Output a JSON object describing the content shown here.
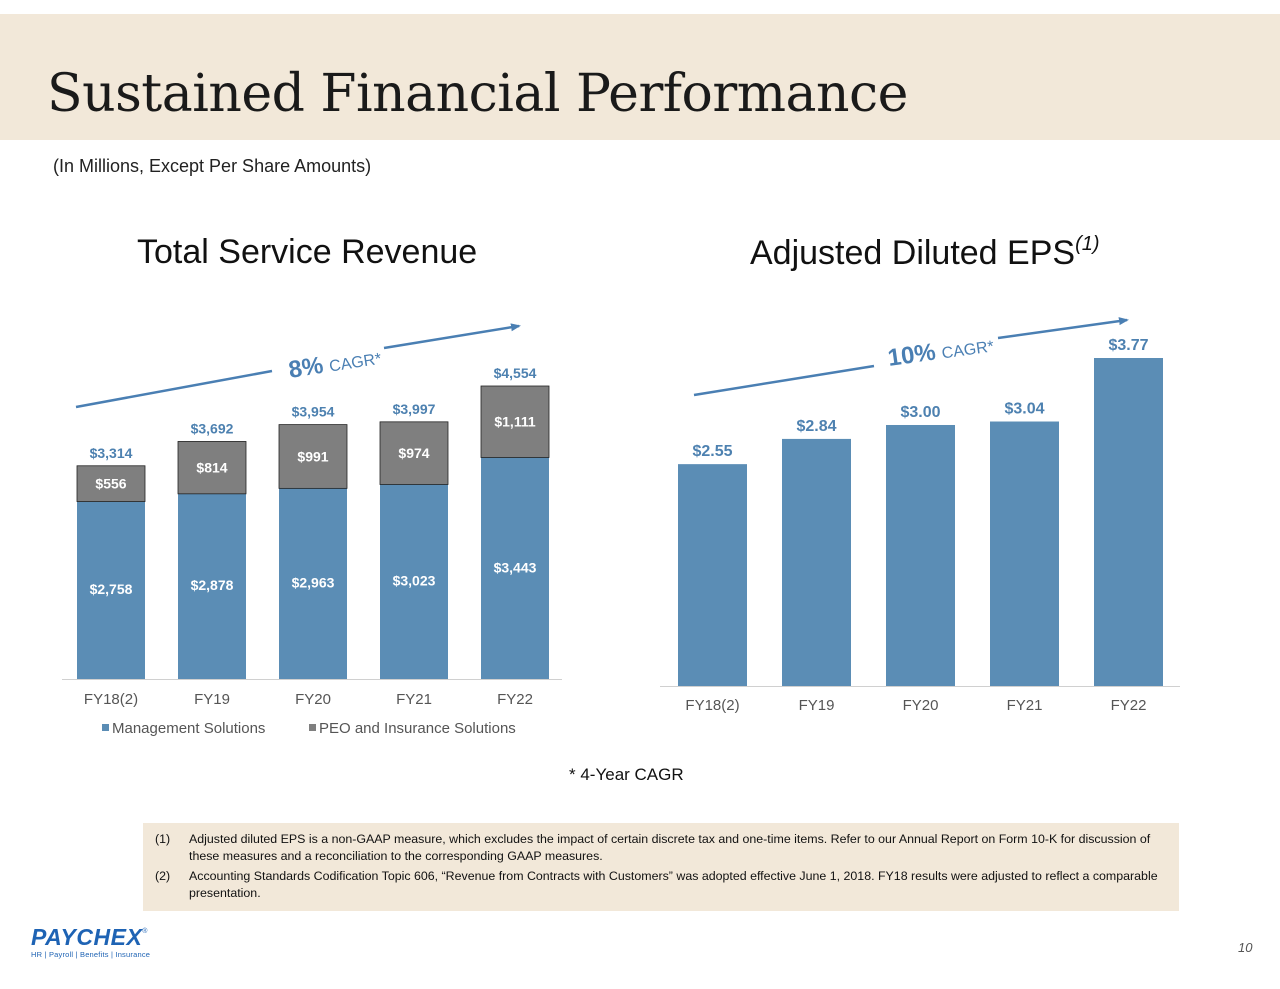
{
  "header": {
    "title": "Sustained Financial Performance",
    "subtitle": "(In Millions, Except Per Share Amounts)"
  },
  "colors": {
    "header_band": "#f2e8d9",
    "management": "#5b8db5",
    "peo": "#7f7f7f",
    "label_blue": "#4d81b0",
    "cagr_blue": "#4a7fb3"
  },
  "revenue_chart": {
    "title": "Total Service Revenue",
    "cagr_value": "8%",
    "cagr_label": "CAGR*"
  },
  "eps_chart": {
    "title": "Adjusted Diluted EPS",
    "title_sup": "(1)",
    "cagr_value": "10%",
    "cagr_label": "CAGR*"
  },
  "chart_data": [
    {
      "type": "bar",
      "stacked": true,
      "title": "Total Service Revenue",
      "categories": [
        "FY18(2)",
        "FY19",
        "FY20",
        "FY21",
        "FY22"
      ],
      "series": [
        {
          "name": "Management Solutions",
          "values": [
            2758,
            2878,
            2963,
            3023,
            3443
          ],
          "labels": [
            "$2,758",
            "$2,878",
            "$2,963",
            "$3,023",
            "$3,443"
          ]
        },
        {
          "name": "PEO and Insurance Solutions",
          "values": [
            556,
            814,
            991,
            974,
            1111
          ],
          "labels": [
            "$556",
            "$814",
            "$991",
            "$974",
            "$1,111"
          ]
        }
      ],
      "totals": [
        3314,
        3692,
        3954,
        3997,
        4554
      ],
      "total_labels": [
        "$3,314",
        "$3,692",
        "$3,954",
        "$3,997",
        "$4,554"
      ],
      "ylim": [
        0,
        5000
      ],
      "legend": "bottom",
      "grid": false
    },
    {
      "type": "bar",
      "title": "Adjusted Diluted EPS",
      "categories": [
        "FY18(2)",
        "FY19",
        "FY20",
        "FY21",
        "FY22"
      ],
      "values": [
        2.55,
        2.84,
        3.0,
        3.04,
        3.77
      ],
      "labels": [
        "$2.55",
        "$2.84",
        "$3.00",
        "$3.04",
        "$3.77"
      ],
      "ylim": [
        0,
        4.0
      ],
      "grid": false
    }
  ],
  "cagr_note": "* 4-Year CAGR",
  "footnotes": [
    {
      "num": "(1)",
      "text": "Adjusted diluted EPS is a non-GAAP measure, which excludes the impact of certain discrete tax and one-time items. Refer to our Annual Report on Form 10-K for discussion of these measures and a reconciliation to the corresponding GAAP measures."
    },
    {
      "num": "(2)",
      "text": "Accounting Standards Codification Topic 606, “Revenue from Contracts with Customers” was adopted effective June 1, 2018.  FY18 results were adjusted to reflect a comparable presentation."
    }
  ],
  "logo": {
    "name": "PAYCHEX",
    "tm": "®",
    "tagline": "HR | Payroll | Benefits | Insurance"
  },
  "page_number": "10"
}
